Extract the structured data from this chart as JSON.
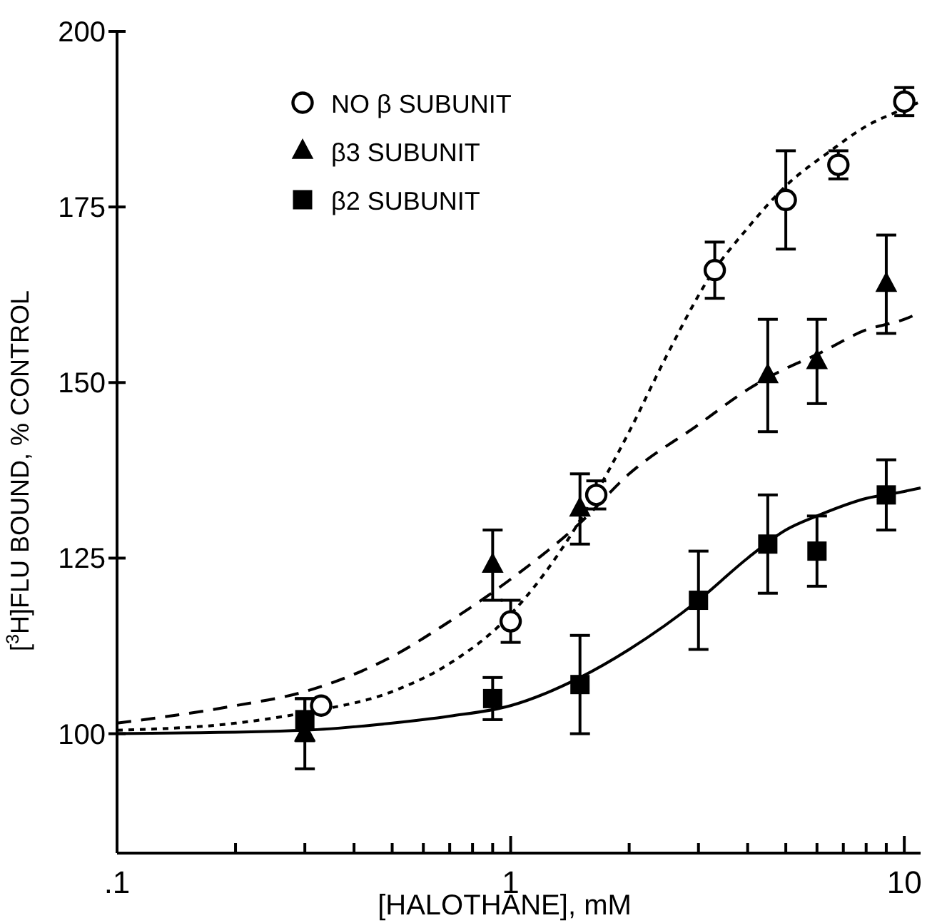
{
  "chart_data": {
    "type": "scatter",
    "xlabel": "[HALOTHANE], mM",
    "ylabel": "[$^{3}$H]FLU BOUND, % CONTROL",
    "log": "x",
    "xlim": [
      0.1,
      11
    ],
    "ylim": [
      83,
      200
    ],
    "xticks": [
      {
        "value": 0.1,
        "label": ".1"
      },
      {
        "value": 0.2,
        "label": null
      },
      {
        "value": 0.3,
        "label": null
      },
      {
        "value": 0.4,
        "label": null
      },
      {
        "value": 0.5,
        "label": null
      },
      {
        "value": 0.6,
        "label": null
      },
      {
        "value": 0.7,
        "label": null
      },
      {
        "value": 0.8,
        "label": null
      },
      {
        "value": 0.9,
        "label": null
      },
      1,
      {
        "value": 2,
        "label": null
      },
      {
        "value": 3,
        "label": null
      },
      {
        "value": 4,
        "label": null
      },
      {
        "value": 5,
        "label": null
      },
      {
        "value": 6,
        "label": null
      },
      {
        "value": 7,
        "label": null
      },
      {
        "value": 8,
        "label": null
      },
      {
        "value": 9,
        "label": null
      },
      10
    ],
    "yticks": [
      100,
      125,
      150,
      175,
      200
    ],
    "grid": false,
    "legend": "top left",
    "series": [
      {
        "name": "NO β SUBUNIT",
        "marker": "circle",
        "color": "#000000",
        "x": [
          0.33,
          1.0,
          1.65,
          3.3,
          5.0,
          6.8,
          10
        ],
        "values": [
          104,
          116,
          134,
          166,
          176,
          181,
          190
        ],
        "errors": [
          null,
          3,
          2,
          4,
          7,
          2,
          2
        ]
      },
      {
        "name": "β3 SUBUNIT",
        "marker": "triangle",
        "color": "#000000",
        "x": [
          0.3,
          0.9,
          1.5,
          4.5,
          6.0,
          9.0
        ],
        "values": [
          100,
          124,
          132,
          151,
          153,
          164
        ],
        "errors": [
          5,
          5,
          5,
          8,
          6,
          7
        ]
      },
      {
        "name": "β2 SUBUNIT",
        "marker": "square",
        "color": "#000000",
        "x": [
          0.3,
          0.9,
          1.5,
          3.0,
          4.5,
          6.0,
          9.0
        ],
        "values": [
          102,
          105,
          107,
          119,
          127,
          126,
          134
        ],
        "errors": [
          3,
          3,
          7,
          7,
          7,
          5,
          5
        ]
      },
      {
        "type": "line",
        "line_style": "dotted",
        "color": "#000000",
        "x": [
          0.1,
          0.2,
          0.3,
          0.5,
          0.7,
          1.0,
          1.3,
          1.6,
          2,
          2.5,
          3.2,
          4,
          5,
          6.5,
          8,
          10,
          11
        ],
        "values": [
          100.5,
          101.5,
          103,
          106,
          110,
          117,
          125,
          133,
          143,
          154,
          165,
          172,
          178,
          183,
          186.5,
          189,
          190
        ]
      },
      {
        "type": "line",
        "line_style": "dashed",
        "color": "#000000",
        "x": [
          0.1,
          0.2,
          0.3,
          0.5,
          0.7,
          1.0,
          1.5,
          2,
          3,
          4,
          5,
          6,
          8,
          10,
          11
        ],
        "values": [
          101.5,
          104,
          106,
          111,
          116,
          122,
          130,
          137,
          144,
          149,
          152,
          154,
          157.5,
          159,
          160
        ]
      },
      {
        "type": "line",
        "line_style": "solid",
        "color": "#000000",
        "x": [
          0.1,
          0.3,
          0.5,
          0.7,
          1,
          1.5,
          2,
          3,
          4,
          5,
          6,
          8,
          10,
          11
        ],
        "values": [
          100,
          100.5,
          101.5,
          102.5,
          104,
          108,
          112,
          119,
          125,
          129,
          131,
          133.5,
          134.5,
          135
        ]
      }
    ]
  }
}
